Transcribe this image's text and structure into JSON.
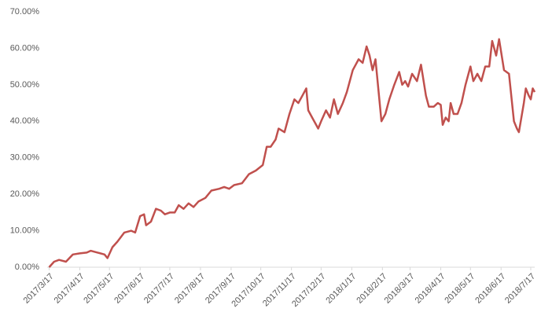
{
  "chart_data": {
    "type": "line",
    "x": [
      "2017/3/17",
      "2017/3/22",
      "2017/3/27",
      "2017/4/3",
      "2017/4/10",
      "2017/4/17",
      "2017/4/24",
      "2017/4/28",
      "2017/5/5",
      "2017/5/12",
      "2017/5/15",
      "2017/5/20",
      "2017/5/25",
      "2017/6/1",
      "2017/6/8",
      "2017/6/12",
      "2017/6/17",
      "2017/6/21",
      "2017/6/23",
      "2017/6/28",
      "2017/7/3",
      "2017/7/8",
      "2017/7/12",
      "2017/7/17",
      "2017/7/22",
      "2017/7/26",
      "2017/7/31",
      "2017/8/5",
      "2017/8/10",
      "2017/8/15",
      "2017/8/22",
      "2017/8/28",
      "2017/9/5",
      "2017/9/10",
      "2017/9/15",
      "2017/9/20",
      "2017/9/28",
      "2017/10/5",
      "2017/10/12",
      "2017/10/19",
      "2017/10/23",
      "2017/10/27",
      "2017/11/1",
      "2017/11/4",
      "2017/11/10",
      "2017/11/15",
      "2017/11/20",
      "2017/11/24",
      "2017/11/28",
      "2017/12/2",
      "2017/12/4",
      "2017/12/8",
      "2017/12/12",
      "2017/12/14",
      "2017/12/17",
      "2017/12/22",
      "2017/12/26",
      "2017/12/30",
      "2018/1/3",
      "2018/1/8",
      "2018/1/12",
      "2018/1/18",
      "2018/1/24",
      "2018/1/28",
      "2018/2/1",
      "2018/2/4",
      "2018/2/7",
      "2018/2/10",
      "2018/2/16",
      "2018/2/20",
      "2018/2/24",
      "2018/3/1",
      "2018/3/6",
      "2018/3/9",
      "2018/3/12",
      "2018/3/15",
      "2018/3/19",
      "2018/3/24",
      "2018/3/28",
      "2018/4/2",
      "2018/4/5",
      "2018/4/10",
      "2018/4/14",
      "2018/4/17",
      "2018/4/19",
      "2018/4/22",
      "2018/4/25",
      "2018/4/27",
      "2018/4/30",
      "2018/5/4",
      "2018/5/8",
      "2018/5/12",
      "2018/5/17",
      "2018/5/20",
      "2018/5/24",
      "2018/5/28",
      "2018/6/1",
      "2018/6/5",
      "2018/6/8",
      "2018/6/12",
      "2018/6/15",
      "2018/6/20",
      "2018/6/25",
      "2018/6/30",
      "2018/7/3",
      "2018/7/5",
      "2018/7/10",
      "2018/7/12",
      "2018/7/15",
      "2018/7/17",
      "2018/7/19",
      "2018/7/21"
    ],
    "series": [
      {
        "color": "#c0504d",
        "values": [
          0,
          1.5,
          2,
          1.5,
          3.5,
          3.8,
          4,
          4.5,
          4,
          3.5,
          2.5,
          5.5,
          7,
          9.5,
          10,
          9.5,
          14,
          14.5,
          11.5,
          12.5,
          16,
          15.5,
          14.5,
          15,
          15,
          17,
          16,
          17.5,
          16.5,
          18,
          19,
          21,
          21.5,
          22,
          21.5,
          22.5,
          23,
          25.5,
          26.5,
          28,
          33,
          33,
          35,
          38,
          37,
          42,
          46,
          45,
          47,
          49,
          43,
          41,
          39,
          38,
          40,
          43,
          41,
          46,
          42,
          45,
          48,
          54,
          57,
          56,
          60.5,
          58,
          54,
          57,
          40,
          42,
          46,
          50,
          53.5,
          50,
          51,
          49.5,
          53,
          51,
          55.5,
          47,
          44,
          44,
          45,
          44.5,
          39,
          41,
          40,
          45,
          42,
          42,
          45,
          50,
          55,
          51,
          53,
          51,
          55,
          55,
          62,
          58,
          62.5,
          54,
          53,
          40,
          38,
          37,
          45,
          49,
          47,
          46,
          49,
          48
        ]
      }
    ],
    "xlim": [
      "2017/3/15",
      "2018/7/21"
    ],
    "xticks": [
      "2017/3/17",
      "2017/4/17",
      "2017/5/17",
      "2017/6/17",
      "2017/7/17",
      "2017/8/17",
      "2017/9/17",
      "2017/10/17",
      "2017/11/17",
      "2017/12/17",
      "2018/1/17",
      "2018/2/17",
      "2018/3/17",
      "2018/4/17",
      "2018/5/17",
      "2018/6/17",
      "2018/7/17"
    ],
    "ylim": [
      0,
      70
    ],
    "yticks": [
      {
        "value": 0,
        "label": "0.00%"
      },
      {
        "value": 10,
        "label": "10.00%"
      },
      {
        "value": 20,
        "label": "20.00%"
      },
      {
        "value": 30,
        "label": "30.00%"
      },
      {
        "value": 40,
        "label": "40.00%"
      },
      {
        "value": 50,
        "label": "50.00%"
      },
      {
        "value": 60,
        "label": "60.00%"
      },
      {
        "value": 70,
        "label": "70.00%"
      }
    ],
    "grid": false
  }
}
